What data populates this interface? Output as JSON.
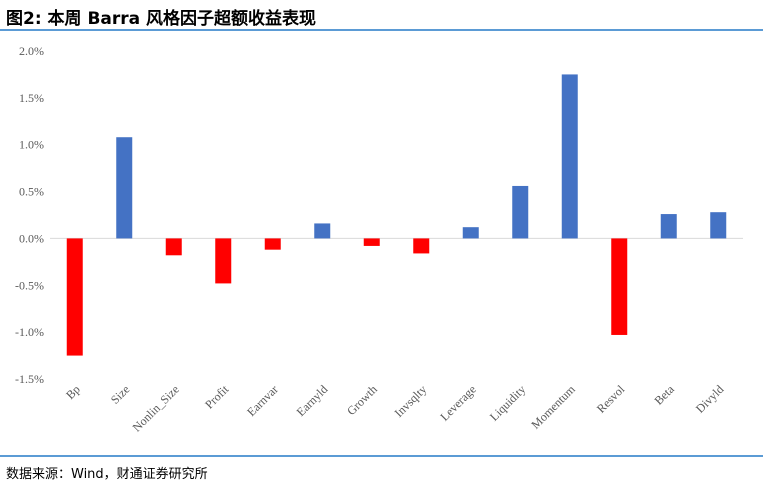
{
  "header": {
    "title": "图2: 本周 Barra 风格因子超额收益表现"
  },
  "footer": {
    "source": "数据来源：Wind，财通证券研究所"
  },
  "colors": {
    "positive": "#4472C4",
    "negative": "#FF0000",
    "rule": "#5B9BD5",
    "axis": "#D9D9D9"
  },
  "chart_data": {
    "type": "bar",
    "title": "",
    "xlabel": "",
    "ylabel": "",
    "categories": [
      "Bp",
      "Size",
      "Nonlin_Size",
      "Profit",
      "Earnvar",
      "Earnyld",
      "Growth",
      "Invsqlty",
      "Leverage",
      "Liquidity",
      "Momentum",
      "Resvol",
      "Beta",
      "Divyld"
    ],
    "values": [
      -1.25,
      1.08,
      -0.18,
      -0.48,
      -0.12,
      0.16,
      -0.08,
      -0.16,
      0.12,
      0.56,
      1.75,
      -1.03,
      0.26,
      0.28
    ],
    "ylim": [
      -1.5,
      2.0
    ],
    "yticks": [
      -1.5,
      -1.0,
      -0.5,
      0.0,
      0.5,
      1.0,
      1.5,
      2.0
    ],
    "ytick_labels": [
      "-1.5%",
      "-1.0%",
      "-0.5%",
      "0.0%",
      "0.5%",
      "1.0%",
      "1.5%",
      "2.0%"
    ],
    "grid": false,
    "legend": "none"
  }
}
